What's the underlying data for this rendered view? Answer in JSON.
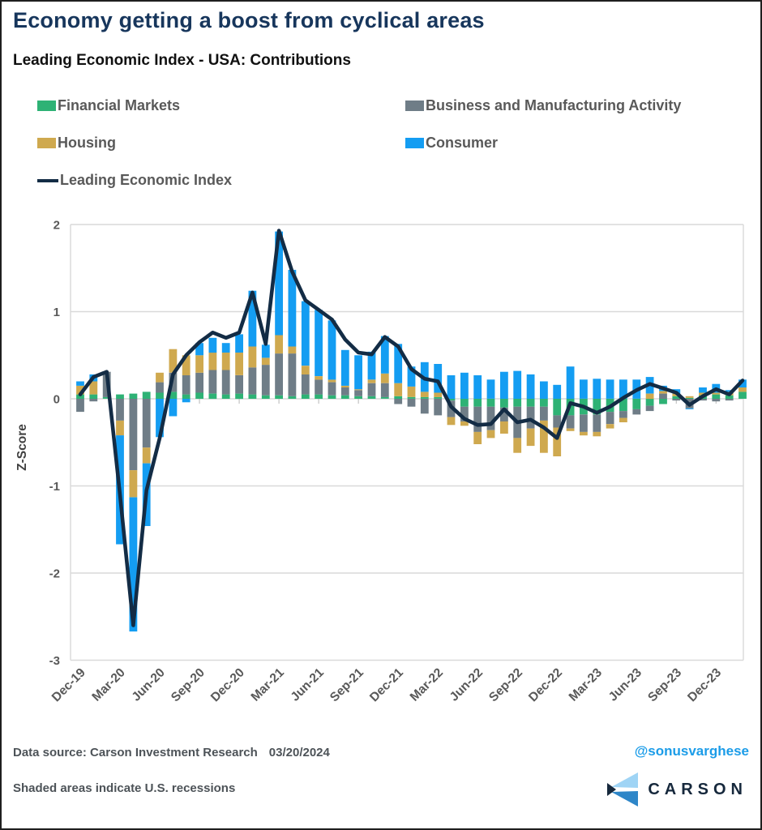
{
  "title": "Economy getting a boost from cyclical areas",
  "subtitle": "Leading Economic Index - USA: Contributions",
  "legend": [
    {
      "label": "Financial Markets",
      "color": "#2eb275",
      "type": "box"
    },
    {
      "label": "Business and Manufacturing Activity",
      "color": "#6f7d87",
      "type": "box"
    },
    {
      "label": "Housing",
      "color": "#cfa94f",
      "type": "box"
    },
    {
      "label": "Consumer",
      "color": "#149df2",
      "type": "box"
    },
    {
      "label": "Leading Economic Index",
      "color": "#132c45",
      "type": "line"
    }
  ],
  "chart_data": {
    "type": "stacked-bar+line",
    "title": "Leading Economic Index - USA: Contributions",
    "xlabel": "",
    "ylabel": "Z-Score",
    "ylim": [
      -3,
      2
    ],
    "yticks": [
      2,
      1,
      0,
      -1,
      -2,
      -3
    ],
    "grid": true,
    "legend_position": "top",
    "x_tick_labels": [
      "Dec-19",
      "Mar-20",
      "Jun-20",
      "Sep-20",
      "Dec-20",
      "Mar-21",
      "Jun-21",
      "Sep-21",
      "Dec-21",
      "Mar-22",
      "Jun-22",
      "Sep-22",
      "Dec-22",
      "Mar-23",
      "Jun-23",
      "Sep-23",
      "Dec-23"
    ],
    "months": [
      "Dec-19",
      "Jan-20",
      "Feb-20",
      "Mar-20",
      "Apr-20",
      "May-20",
      "Jun-20",
      "Jul-20",
      "Aug-20",
      "Sep-20",
      "Oct-20",
      "Nov-20",
      "Dec-20",
      "Jan-21",
      "Feb-21",
      "Mar-21",
      "Apr-21",
      "May-21",
      "Jun-21",
      "Jul-21",
      "Aug-21",
      "Sep-21",
      "Oct-21",
      "Nov-21",
      "Dec-21",
      "Jan-22",
      "Feb-22",
      "Mar-22",
      "Apr-22",
      "May-22",
      "Jun-22",
      "Jul-22",
      "Aug-22",
      "Sep-22",
      "Oct-22",
      "Nov-22",
      "Dec-22",
      "Jan-23",
      "Feb-23",
      "Mar-23",
      "Apr-23",
      "May-23",
      "Jun-23",
      "Jul-23",
      "Aug-23",
      "Sep-23",
      "Oct-23",
      "Nov-23",
      "Dec-23",
      "Jan-24",
      "Feb-24"
    ],
    "series": [
      {
        "name": "Financial Markets",
        "color": "#2eb275",
        "values": [
          0.05,
          0.05,
          0.02,
          0.05,
          0.06,
          0.08,
          0.07,
          0.08,
          0.05,
          0.07,
          0.06,
          0.05,
          0.06,
          0.05,
          0.04,
          0.04,
          0.03,
          0.05,
          0.05,
          0.04,
          0.04,
          0.03,
          0.03,
          0.02,
          0.03,
          0.02,
          0.02,
          0.02,
          -0.02,
          -0.09,
          -0.09,
          -0.09,
          -0.1,
          -0.09,
          -0.09,
          -0.09,
          -0.19,
          -0.19,
          -0.18,
          -0.18,
          -0.15,
          -0.14,
          -0.12,
          -0.08,
          -0.06,
          0.03,
          0.01,
          0.04,
          0.05,
          0.04,
          0.08
        ]
      },
      {
        "name": "Business and Manufacturing Activity",
        "color": "#6f7d87",
        "values": [
          -0.15,
          -0.03,
          0.29,
          -0.25,
          -0.82,
          -0.56,
          0.12,
          0.22,
          0.22,
          0.23,
          0.27,
          0.28,
          0.21,
          0.31,
          0.35,
          0.48,
          0.49,
          0.23,
          0.17,
          0.15,
          0.09,
          0.07,
          0.15,
          0.16,
          -0.06,
          -0.09,
          -0.17,
          -0.19,
          -0.19,
          -0.17,
          -0.29,
          -0.27,
          -0.16,
          -0.36,
          -0.25,
          -0.16,
          -0.14,
          -0.15,
          -0.2,
          -0.2,
          -0.14,
          -0.08,
          -0.06,
          -0.06,
          0.06,
          -0.02,
          -0.11,
          -0.02,
          -0.03,
          -0.02,
          0.0
        ]
      },
      {
        "name": "Housing",
        "color": "#cfa94f",
        "values": [
          0.1,
          0.15,
          0.0,
          -0.17,
          -0.31,
          -0.18,
          0.11,
          0.27,
          0.23,
          0.2,
          0.2,
          0.2,
          0.26,
          0.24,
          0.08,
          0.21,
          0.08,
          0.1,
          0.04,
          0.03,
          0.02,
          0.01,
          0.04,
          0.11,
          0.15,
          0.12,
          0.06,
          0.05,
          -0.09,
          -0.05,
          -0.14,
          -0.09,
          -0.14,
          -0.17,
          -0.2,
          -0.37,
          -0.33,
          -0.03,
          -0.04,
          -0.05,
          -0.05,
          -0.05,
          0.0,
          0.06,
          0.03,
          0.03,
          0.02,
          0.03,
          0.02,
          0.04,
          0.05
        ]
      },
      {
        "name": "Consumer",
        "color": "#149df2",
        "values": [
          0.05,
          0.08,
          0.0,
          -1.25,
          -1.54,
          -0.72,
          -0.44,
          -0.2,
          -0.04,
          0.14,
          0.17,
          0.11,
          0.21,
          0.64,
          0.15,
          1.19,
          0.88,
          0.74,
          0.76,
          0.68,
          0.41,
          0.39,
          0.32,
          0.43,
          0.45,
          0.23,
          0.34,
          0.33,
          0.27,
          0.3,
          0.27,
          0.22,
          0.31,
          0.32,
          0.28,
          0.2,
          0.16,
          0.37,
          0.22,
          0.23,
          0.22,
          0.22,
          0.22,
          0.19,
          0.06,
          0.05,
          -0.01,
          0.06,
          0.1,
          0.02,
          0.09
        ]
      }
    ],
    "line": {
      "name": "Leading Economic Index",
      "color": "#132c45",
      "values": [
        0.05,
        0.25,
        0.31,
        -1.1,
        -2.6,
        -1.05,
        -0.45,
        0.28,
        0.5,
        0.65,
        0.76,
        0.7,
        0.76,
        1.22,
        0.63,
        1.93,
        1.46,
        1.13,
        1.02,
        0.91,
        0.68,
        0.53,
        0.51,
        0.71,
        0.6,
        0.34,
        0.23,
        0.2,
        -0.09,
        -0.23,
        -0.3,
        -0.29,
        -0.12,
        -0.27,
        -0.24,
        -0.33,
        -0.45,
        -0.05,
        -0.09,
        -0.16,
        -0.09,
        0.01,
        0.1,
        0.17,
        0.12,
        0.07,
        -0.07,
        0.03,
        0.11,
        0.05,
        0.21
      ]
    }
  },
  "footer": {
    "source_label": "Data source: Carson Investment Research",
    "source_date": "03/20/2024",
    "handle": "@sonusvarghese",
    "note": "Shaded areas indicate U.S. recessions",
    "logo_text": "CARSON"
  },
  "colors": {
    "title": "#17365c",
    "axis_text": "#595959",
    "gridline": "#d9d9d9",
    "handle_blue": "#1b9ce8"
  }
}
